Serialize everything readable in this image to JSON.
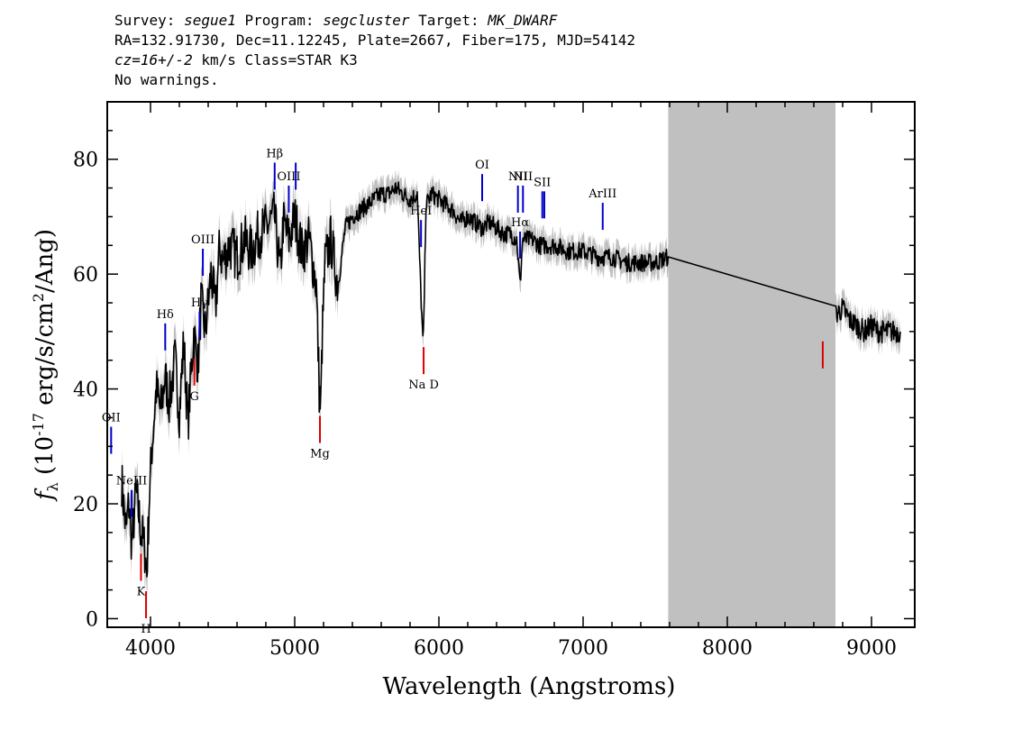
{
  "header": {
    "line1": {
      "survey_label": "Survey: ",
      "survey": "segue1",
      "program_label": " Program: ",
      "program": "segcluster",
      "target_label": " Target: ",
      "target": "MK_DWARF"
    },
    "line2": "RA=132.91730, Dec=11.12245, Plate=2667, Fiber=175, MJD=54142",
    "line3": {
      "cz": "cz=16+/-2",
      "rest": " km/s Class=STAR K3"
    },
    "line4": "No warnings."
  },
  "chart_data": {
    "type": "line",
    "xlabel": "Wavelength (Angstroms)",
    "ylabel": "f_λ (10^-17 erg/s/cm^2/Ang)",
    "xlim": [
      3700,
      9300
    ],
    "ylim": [
      -1.5,
      90
    ],
    "xticks": [
      4000,
      5000,
      6000,
      7000,
      8000,
      9000
    ],
    "yticks": [
      0,
      20,
      40,
      60,
      80
    ],
    "masked_region": [
      7590,
      8750
    ],
    "colors": {
      "spectrum": "#000000",
      "error": "#c0c0c0",
      "emission": "#0000cc",
      "absorption": "#dd0000",
      "mask": "#c0c0c0"
    },
    "series": [
      {
        "x": [
          3800,
          3830,
          3850,
          3870,
          3900,
          3930,
          3960,
          3975,
          3990,
          4010,
          4040,
          4070,
          4100,
          4130,
          4170,
          4200,
          4230,
          4260,
          4300,
          4330,
          4350,
          4380,
          4420,
          4450,
          4480,
          4500,
          4550,
          4600,
          4650,
          4700,
          4750,
          4800,
          4860,
          4900,
          4920,
          4960,
          5000,
          5050,
          5100,
          5150,
          5170,
          5180,
          5190,
          5210,
          5250,
          5300,
          5350,
          5400,
          5450,
          5500,
          5550,
          5600,
          5650,
          5700,
          5750,
          5800,
          5850,
          5870,
          5889,
          5896,
          5910,
          5950,
          6000,
          6050,
          6100,
          6150,
          6200,
          6250,
          6300,
          6350,
          6400,
          6450,
          6500,
          6540,
          6563,
          6580,
          6600,
          6650,
          6700,
          6800,
          6900,
          7000,
          7100,
          7200,
          7300,
          7400,
          7500,
          7590,
          8750,
          8800,
          8850,
          8900,
          8950,
          9000,
          9050,
          9100,
          9150,
          9200
        ],
        "y": [
          24,
          15,
          20,
          13,
          22,
          16,
          12,
          8,
          20,
          30,
          40,
          36,
          42,
          38,
          45,
          36,
          48,
          34,
          50,
          44,
          55,
          50,
          60,
          54,
          65,
          62,
          65,
          63,
          66,
          64,
          67,
          68,
          70,
          60,
          69,
          66,
          70,
          64,
          66,
          58,
          40,
          36,
          48,
          62,
          66,
          58,
          68,
          70,
          71,
          72,
          73,
          74,
          74,
          75,
          74,
          73,
          74,
          60,
          48,
          52,
          72,
          74,
          73,
          72,
          71,
          69,
          70,
          69,
          68,
          69,
          68,
          67,
          67,
          66,
          58,
          66,
          66,
          66,
          65,
          65,
          64,
          64,
          63,
          63,
          62,
          62,
          62,
          63,
          53,
          54,
          52,
          51,
          50,
          51,
          50,
          50,
          50,
          50
        ]
      }
    ],
    "emission_lines": [
      {
        "label": "OII",
        "wl": 3727
      },
      {
        "label": "NeIII",
        "wl": 3869
      },
      {
        "label": "Hδ",
        "wl": 4102
      },
      {
        "label": "Hγ",
        "wl": 4340
      },
      {
        "label": "OIII",
        "wl": 4363
      },
      {
        "label": "Hβ",
        "wl": 4861
      },
      {
        "label": "OIII",
        "wl": 4959
      },
      {
        "label": "",
        "wl": 5007
      },
      {
        "label": "HeI",
        "wl": 5876
      },
      {
        "label": "OI",
        "wl": 6300
      },
      {
        "label": "NII",
        "wl": 6548
      },
      {
        "label": "Hα",
        "wl": 6563
      },
      {
        "label": "NII",
        "wl": 6583
      },
      {
        "label": "SII",
        "wl": 6717
      },
      {
        "label": "",
        "wl": 6731
      },
      {
        "label": "ArIII",
        "wl": 7136
      }
    ],
    "absorption_lines": [
      {
        "label": "K",
        "wl": 3934
      },
      {
        "label": "H",
        "wl": 3969
      },
      {
        "label": "G",
        "wl": 4304
      },
      {
        "label": "Mg",
        "wl": 5175
      },
      {
        "label": "Na D",
        "wl": 5894
      },
      {
        "label": "",
        "wl": 8662
      }
    ]
  }
}
